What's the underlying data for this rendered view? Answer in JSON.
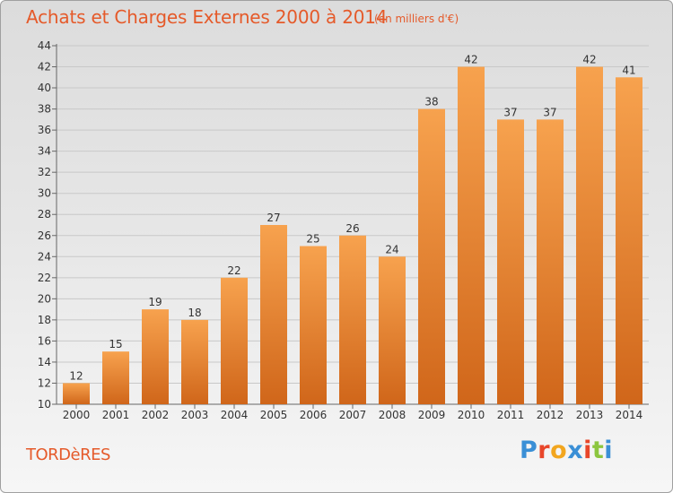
{
  "header": {
    "title": "Achats et Charges Externes 2000 à 2014",
    "subtitle": "(en milliers d'€)"
  },
  "footer": {
    "commune": "TORDèRES",
    "brand": "Proxiti",
    "brand_colors": [
      "#3a8fd6",
      "#e8462a",
      "#f2a61f",
      "#3a8fd6",
      "#e8462a",
      "#8cc63f",
      "#3a8fd6"
    ]
  },
  "colors": {
    "title": "#e55a2a",
    "bar_light": "#f7a24e",
    "bar_dark": "#d0661a",
    "grid": "#c8c8c8"
  },
  "chart_data": {
    "type": "bar",
    "title": "Achats et Charges Externes 2000 à 2014",
    "subtitle": "(en milliers d'€)",
    "xlabel": "",
    "ylabel": "",
    "categories": [
      "2000",
      "2001",
      "2002",
      "2003",
      "2004",
      "2005",
      "2006",
      "2007",
      "2008",
      "2009",
      "2010",
      "2011",
      "2012",
      "2013",
      "2014"
    ],
    "values": [
      12,
      15,
      19,
      18,
      22,
      27,
      25,
      26,
      24,
      38,
      42,
      37,
      37,
      42,
      41
    ],
    "ylim": [
      10,
      44
    ],
    "yticks": [
      10,
      12,
      14,
      16,
      18,
      20,
      22,
      24,
      26,
      28,
      30,
      32,
      34,
      36,
      38,
      40,
      42,
      44
    ],
    "grid": true,
    "legend": "none"
  }
}
